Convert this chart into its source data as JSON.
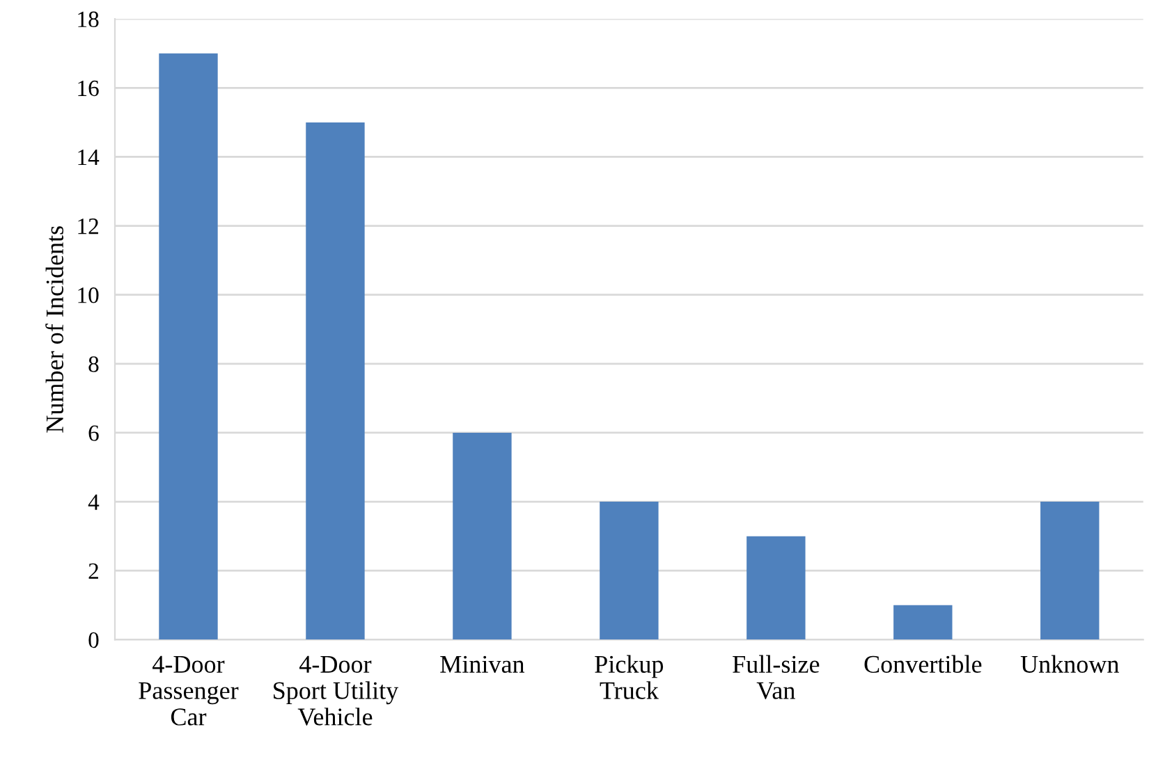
{
  "chart_data": {
    "type": "bar",
    "ylabel": "Number of Incidents",
    "categories": [
      "4-Door\nPassenger\nCar",
      "4-Door\nSport Utility\nVehicle",
      "Minivan",
      "Pickup\nTruck",
      "Full-size\nVan",
      "Convertible",
      "Unknown"
    ],
    "values": [
      17,
      15,
      6,
      4,
      3,
      1,
      4
    ],
    "color": "#4f81bd",
    "ylim": [
      0,
      18
    ],
    "yticks": [
      0,
      2,
      4,
      6,
      8,
      10,
      12,
      14,
      16,
      18
    ],
    "grid": "y"
  }
}
